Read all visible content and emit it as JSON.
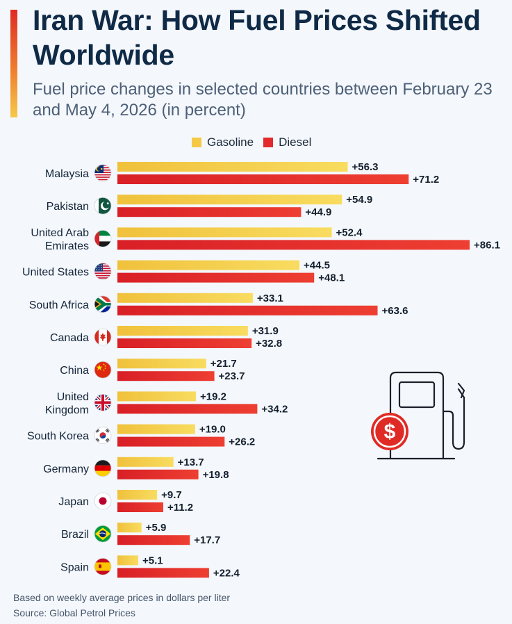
{
  "header": {
    "title": "Iran War: How Fuel Prices Shifted Worldwide",
    "subtitle": "Fuel price changes in selected countries between February 23 and May 4, 2026 (in percent)"
  },
  "legend": {
    "gasoline_label": "Gasoline",
    "diesel_label": "Diesel"
  },
  "footer": {
    "note": "Based on weekly average prices in dollars per liter",
    "source": "Source: Global Petrol Prices"
  },
  "colors": {
    "gasoline": "#f5c946",
    "diesel": "#e3292b",
    "title": "#0f2a46",
    "label": "#13253a"
  },
  "chart_data": {
    "type": "bar",
    "orientation": "horizontal",
    "title": "Iran War: How Fuel Prices Shifted Worldwide",
    "subtitle": "Fuel price changes in selected countries between February 23 and May 4, 2026 (in percent)",
    "legend_position": "top",
    "grid": false,
    "categories": [
      "Malaysia",
      "Pakistan",
      "United Arab Emirates",
      "United States",
      "South Africa",
      "Canada",
      "China",
      "United Kingdom",
      "South Korea",
      "Germany",
      "Japan",
      "Brazil",
      "Spain"
    ],
    "category_display": [
      [
        "Malaysia"
      ],
      [
        "Pakistan"
      ],
      [
        "United Arab",
        "Emirates"
      ],
      [
        "United States"
      ],
      [
        "South Africa"
      ],
      [
        "Canada"
      ],
      [
        "China"
      ],
      [
        "United",
        "Kingdom"
      ],
      [
        "South Korea"
      ],
      [
        "Germany"
      ],
      [
        "Japan"
      ],
      [
        "Brazil"
      ],
      [
        "Spain"
      ]
    ],
    "flags": [
      "malaysia-flag",
      "pakistan-flag",
      "uae-flag",
      "usa-flag",
      "south-africa-flag",
      "canada-flag",
      "china-flag",
      "uk-flag",
      "south-korea-flag",
      "germany-flag",
      "japan-flag",
      "brazil-flag",
      "spain-flag"
    ],
    "series": [
      {
        "name": "Gasoline",
        "values": [
          56.3,
          54.9,
          52.4,
          44.5,
          33.1,
          31.9,
          21.7,
          19.2,
          19.0,
          13.7,
          9.7,
          5.9,
          5.1
        ],
        "labels": [
          "+56.3",
          "+54.9",
          "+52.4",
          "+44.5",
          "+33.1",
          "+31.9",
          "+21.7",
          "+19.2",
          "+19.0",
          "+13.7",
          "+9.7",
          "+5.9",
          "+5.1"
        ]
      },
      {
        "name": "Diesel",
        "values": [
          71.2,
          44.9,
          86.1,
          48.1,
          63.6,
          32.8,
          23.7,
          34.2,
          26.2,
          19.8,
          11.2,
          17.7,
          22.4
        ],
        "labels": [
          "+71.2",
          "+44.9",
          "+86.1",
          "+48.1",
          "+63.6",
          "+32.8",
          "+23.7",
          "+34.2",
          "+26.2",
          "+19.8",
          "+11.2",
          "+17.7",
          "+22.4"
        ]
      }
    ],
    "xlim": [
      0,
      86.1
    ],
    "icon": "fuel-pump-dollar-icon"
  }
}
